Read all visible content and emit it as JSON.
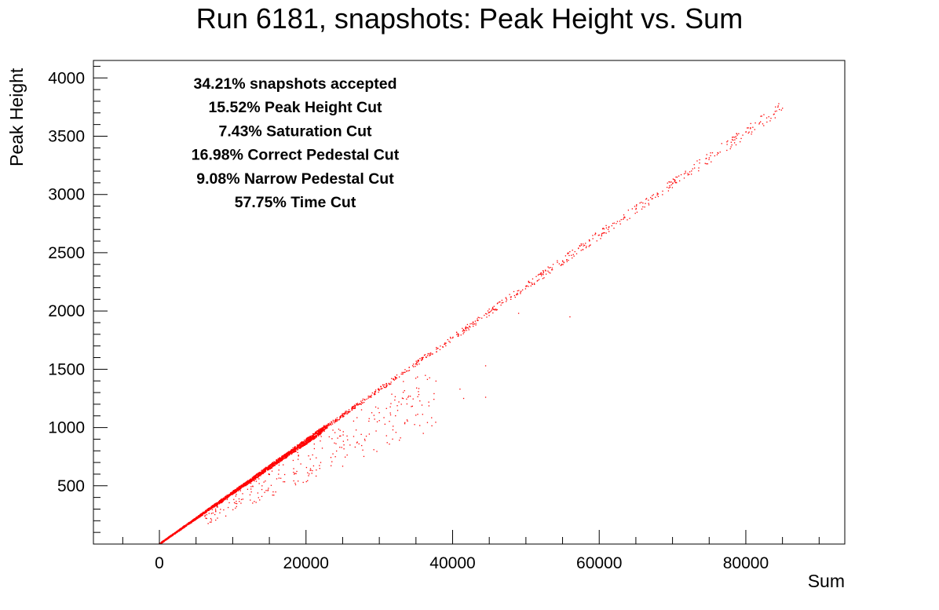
{
  "chart_data": {
    "type": "scatter",
    "title": "Run 6181, snapshots: Peak Height vs. Sum",
    "xlabel": "Sum",
    "ylabel": "Peak Height",
    "xlim": [
      -9000,
      93500
    ],
    "ylim": [
      0,
      4150
    ],
    "x_ticks": [
      0,
      20000,
      40000,
      60000,
      80000
    ],
    "y_ticks": [
      500,
      1000,
      1500,
      2000,
      2500,
      3000,
      3500,
      4000
    ],
    "point_color": "#ff0000",
    "grid": false,
    "annotations": [
      "34.21% snapshots accepted",
      "15.52% Peak Height Cut",
      "7.43% Saturation Cut",
      "16.98% Correct Pedestal Cut",
      "9.08% Narrow Pedestal Cut",
      "57.75% Time Cut"
    ],
    "series": [
      {
        "trend": {
          "slope": 0.0442,
          "x_range": [
            0,
            85000
          ]
        },
        "points": [
          [
            0,
            10
          ],
          [
            1000,
            44
          ],
          [
            2000,
            88
          ],
          [
            3000,
            133
          ],
          [
            4000,
            177
          ],
          [
            5000,
            221
          ],
          [
            6000,
            265
          ],
          [
            7000,
            310
          ],
          [
            8000,
            354
          ],
          [
            9000,
            398
          ],
          [
            10000,
            442
          ],
          [
            11000,
            486
          ],
          [
            12000,
            530
          ],
          [
            13000,
            575
          ],
          [
            14000,
            619
          ],
          [
            15000,
            663
          ],
          [
            16000,
            707
          ],
          [
            17000,
            752
          ],
          [
            18000,
            796
          ],
          [
            19000,
            840
          ],
          [
            20000,
            884
          ],
          [
            21000,
            928
          ],
          [
            22000,
            972
          ],
          [
            25000,
            1105
          ],
          [
            28000,
            1238
          ],
          [
            30000,
            1326
          ],
          [
            33000,
            1459
          ],
          [
            35000,
            1547
          ],
          [
            38000,
            1680
          ],
          [
            40000,
            1768
          ],
          [
            42000,
            1856
          ],
          [
            45000,
            1990
          ],
          [
            48000,
            2122
          ],
          [
            50000,
            2210
          ],
          [
            53000,
            2343
          ],
          [
            55000,
            2431
          ],
          [
            58000,
            2564
          ],
          [
            60000,
            2652
          ],
          [
            63000,
            2785
          ],
          [
            65000,
            2873
          ],
          [
            68000,
            3006
          ],
          [
            70000,
            3094
          ],
          [
            73000,
            3227
          ],
          [
            75000,
            3315
          ],
          [
            78000,
            3448
          ],
          [
            80000,
            3536
          ],
          [
            82000,
            3624
          ],
          [
            84000,
            3713
          ],
          [
            85000,
            3740
          ],
          [
            44500,
            1530
          ],
          [
            44500,
            1260
          ],
          [
            41000,
            1330
          ],
          [
            41500,
            1250
          ],
          [
            56000,
            1950
          ],
          [
            49000,
            1980
          ],
          [
            36000,
            950
          ],
          [
            33000,
            1200
          ],
          [
            30000,
            1060
          ],
          [
            28000,
            900
          ],
          [
            26000,
            850
          ],
          [
            24000,
            750
          ],
          [
            22000,
            700
          ],
          [
            16000,
            560
          ],
          [
            14000,
            500
          ]
        ]
      }
    ]
  }
}
